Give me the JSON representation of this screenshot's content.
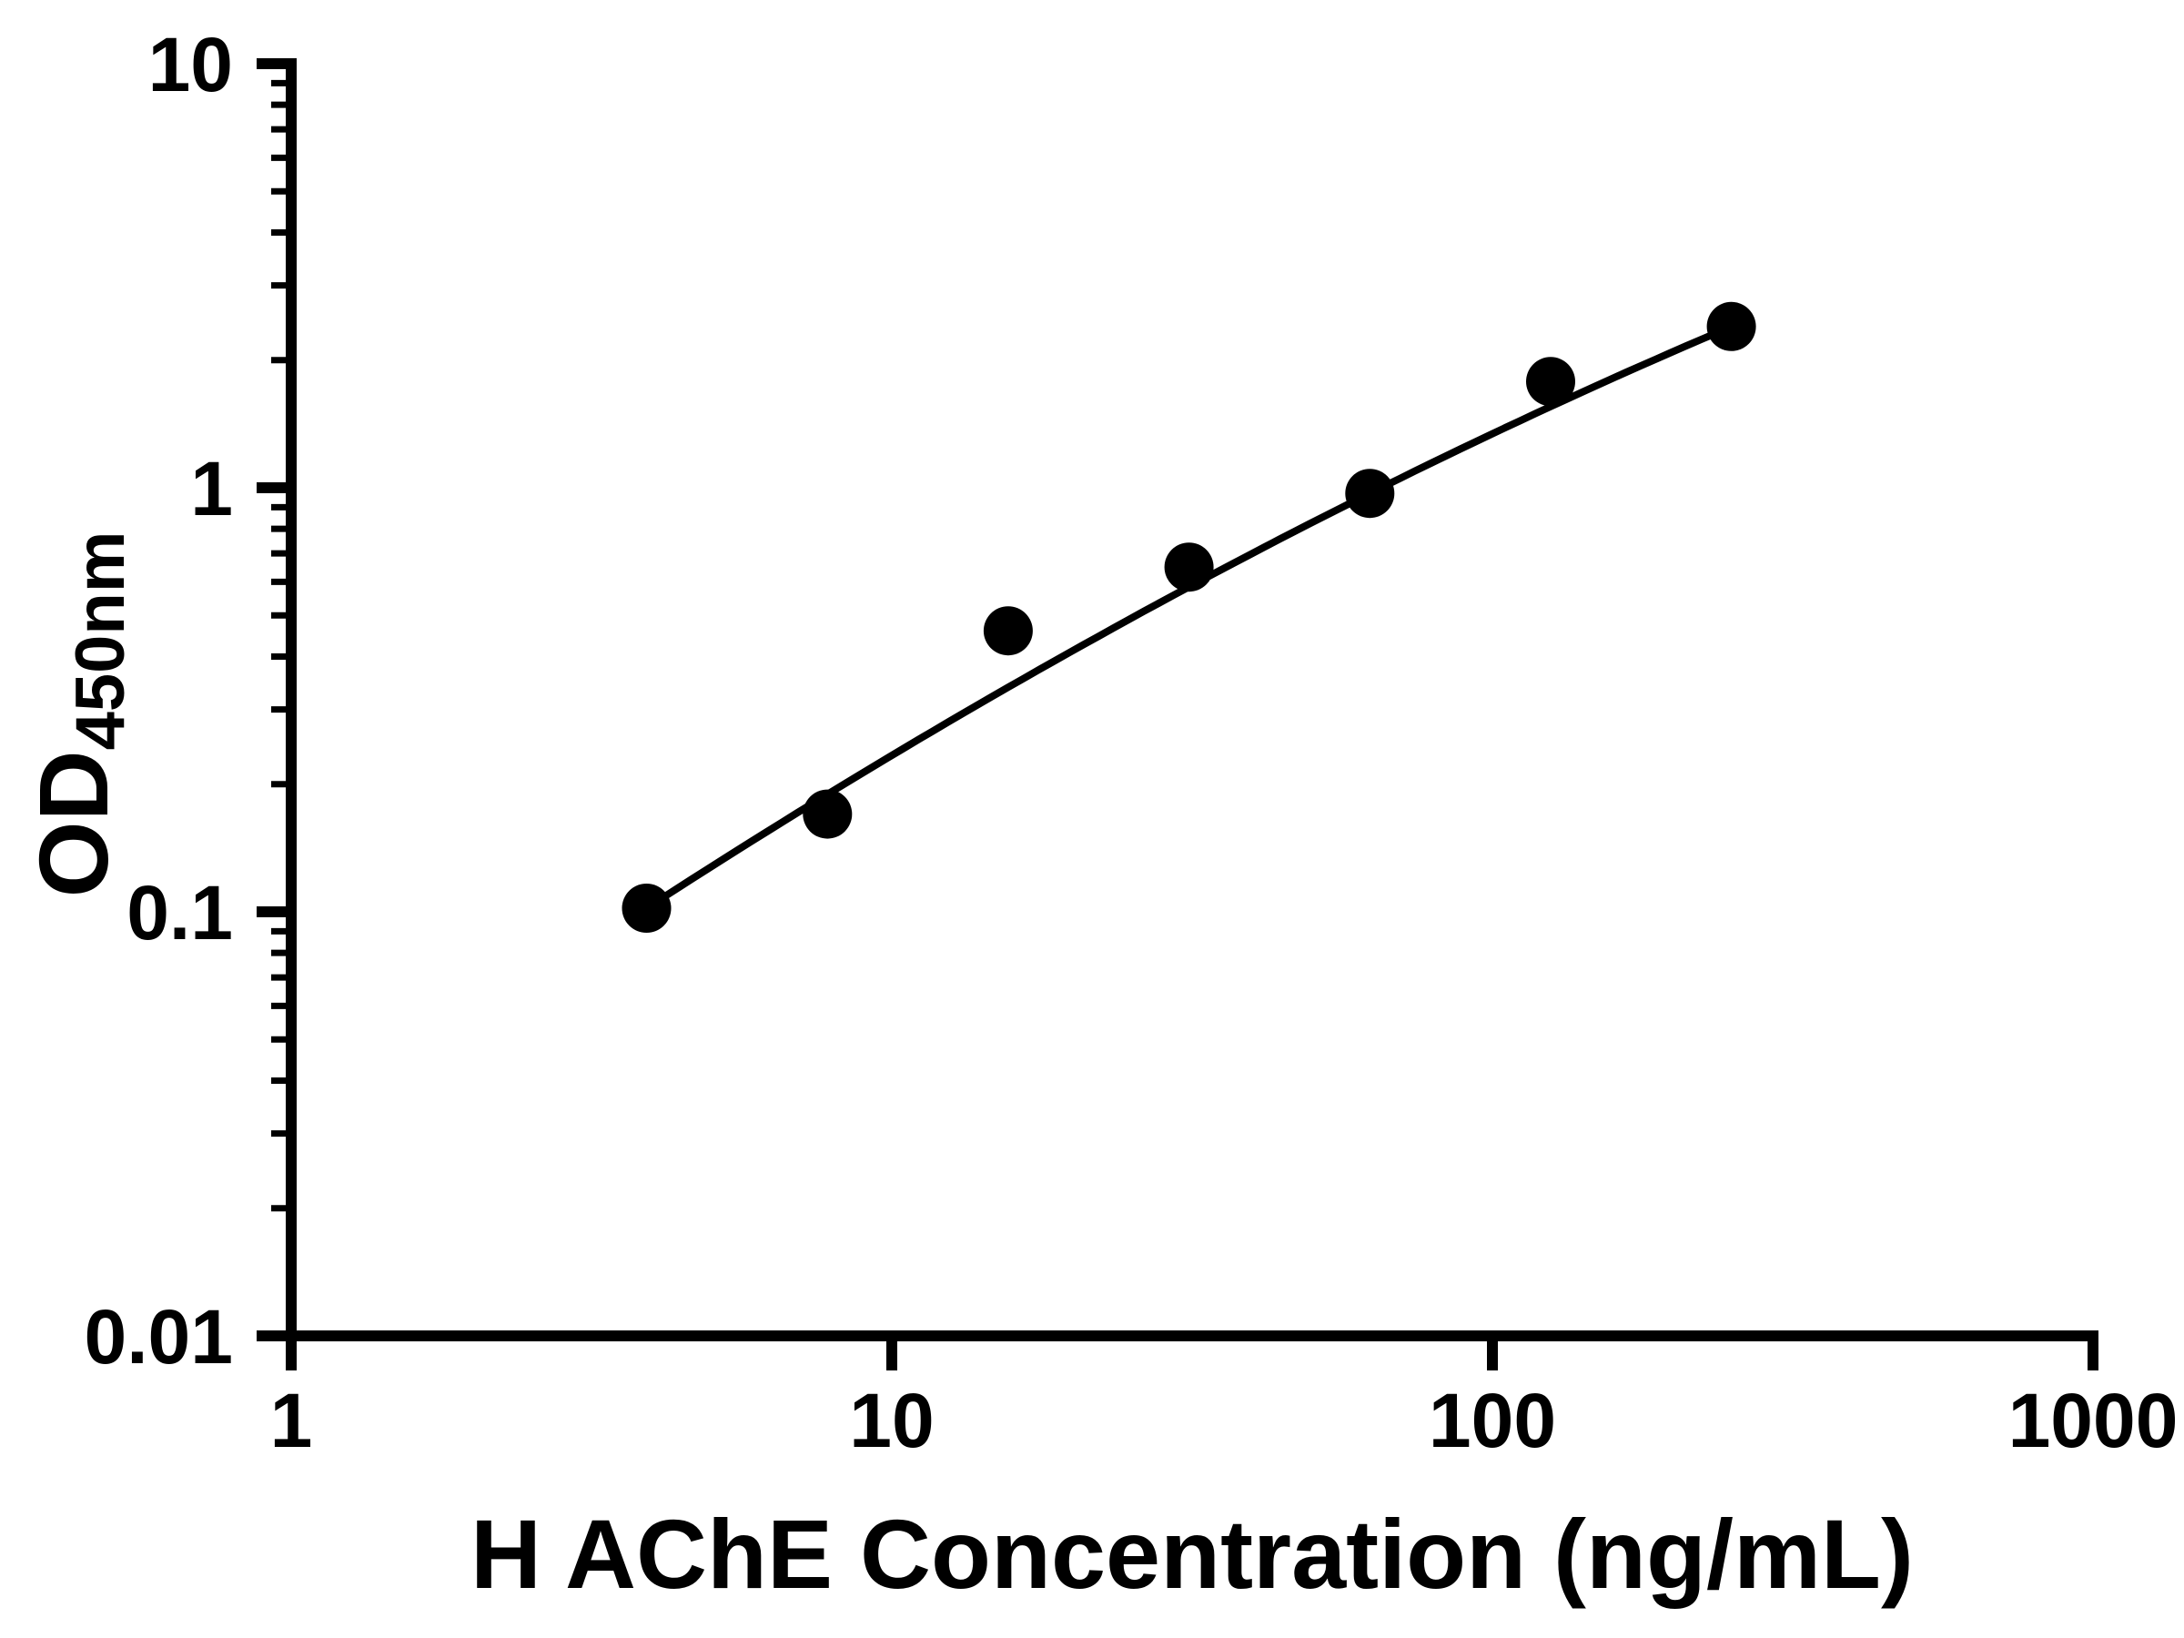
{
  "chart_data": {
    "type": "scatter",
    "title": "",
    "xlabel": "H AChE Concentration (ng/mL)",
    "ylabel": "OD450nm",
    "ylabel_main": "OD",
    "ylabel_sub": "450nm",
    "x_scale": "log10",
    "y_scale": "log10",
    "xlim": [
      1,
      1000
    ],
    "ylim": [
      0.01,
      10
    ],
    "x_ticks": [
      1,
      10,
      100,
      1000
    ],
    "y_ticks": [
      10,
      1,
      0.1,
      0.01
    ],
    "grid": false,
    "legend": "none",
    "colors": {
      "fg": "#000000",
      "bg": "#ffffff"
    },
    "line_color": "#000000",
    "marker": {
      "shape": "circle",
      "color": "#000000",
      "radius_px": 27
    },
    "points": [
      {
        "x": 3.906,
        "y": 0.102
      },
      {
        "x": 7.813,
        "y": 0.17
      },
      {
        "x": 15.625,
        "y": 0.46
      },
      {
        "x": 31.25,
        "y": 0.65
      },
      {
        "x": 62.5,
        "y": 0.97
      },
      {
        "x": 125,
        "y": 1.78
      },
      {
        "x": 250,
        "y": 2.4
      }
    ],
    "fit": {
      "type": "log-log-quadratic",
      "anchor_indices": [
        0,
        4,
        6
      ]
    }
  }
}
